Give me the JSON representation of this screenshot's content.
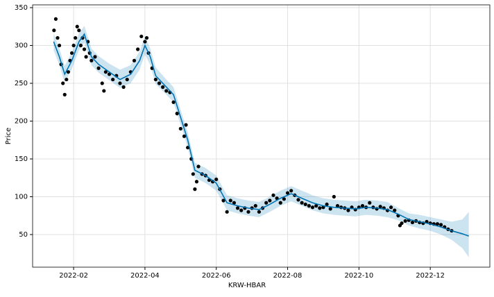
{
  "chart_data": {
    "type": "forecast",
    "xlabel": "KRW-HBAR",
    "ylabel": "Price",
    "xlim": [
      0.85,
      13.67
    ],
    "ylim": [
      6.9,
      353.7
    ],
    "xticks": [
      {
        "value": 2,
        "label": "2022-02"
      },
      {
        "value": 4,
        "label": "2022-04"
      },
      {
        "value": 6,
        "label": "2022-06"
      },
      {
        "value": 8,
        "label": "2022-08"
      },
      {
        "value": 10,
        "label": "2022-10"
      },
      {
        "value": 12,
        "label": "2022-12"
      }
    ],
    "yticks": [
      50,
      100,
      150,
      200,
      250,
      300,
      350
    ],
    "grid": true,
    "line_color": "#0072B2",
    "band_color": "#0072B2",
    "point_color": "#000000",
    "x": [
      1.44,
      1.6,
      1.75,
      1.95,
      2.15,
      2.3,
      2.5,
      2.7,
      3.0,
      3.3,
      3.6,
      3.85,
      4.0,
      4.15,
      4.3,
      4.6,
      4.8,
      5.0,
      5.2,
      5.4,
      5.7,
      6.0,
      6.3,
      6.6,
      6.9,
      7.2,
      7.5,
      7.8,
      8.1,
      8.4,
      8.7,
      9.0,
      9.3,
      9.6,
      9.9,
      10.2,
      10.5,
      10.8,
      11.1,
      11.4,
      11.7,
      12.0,
      12.3,
      12.6,
      12.9,
      13.08
    ],
    "values": [
      305,
      285,
      262,
      280,
      305,
      315,
      285,
      275,
      265,
      255,
      262,
      280,
      300,
      285,
      260,
      245,
      235,
      205,
      175,
      135,
      128,
      118,
      92,
      88,
      85,
      83,
      90,
      98,
      104,
      98,
      92,
      88,
      86,
      85,
      84,
      86,
      85,
      83,
      77,
      70,
      67,
      64,
      60,
      55,
      51,
      48
    ],
    "lower": [
      294,
      274,
      251,
      269,
      294,
      304,
      274,
      264,
      254,
      244,
      250,
      268,
      288,
      274,
      249,
      235,
      225,
      195,
      165,
      125,
      118,
      108,
      82,
      78,
      75,
      73,
      80,
      88,
      94,
      88,
      82,
      78,
      76,
      75,
      74,
      76,
      75,
      73,
      69,
      62,
      58,
      55,
      50,
      43,
      32,
      20
    ],
    "upper": [
      316,
      296,
      273,
      291,
      316,
      326,
      296,
      286,
      276,
      268,
      274,
      292,
      312,
      296,
      271,
      255,
      245,
      215,
      185,
      145,
      138,
      128,
      102,
      98,
      95,
      93,
      100,
      108,
      114,
      108,
      102,
      98,
      96,
      95,
      94,
      96,
      95,
      93,
      85,
      78,
      76,
      73,
      70,
      67,
      70,
      80
    ],
    "points": {
      "x": [
        1.45,
        1.5,
        1.55,
        1.6,
        1.65,
        1.7,
        1.75,
        1.8,
        1.85,
        1.9,
        1.95,
        2.0,
        2.05,
        2.1,
        2.15,
        2.2,
        2.25,
        2.3,
        2.35,
        2.4,
        2.45,
        2.5,
        2.6,
        2.7,
        2.8,
        2.85,
        2.9,
        3.0,
        3.1,
        3.2,
        3.3,
        3.4,
        3.5,
        3.6,
        3.7,
        3.8,
        3.9,
        4.0,
        4.05,
        4.1,
        4.2,
        4.3,
        4.4,
        4.5,
        4.6,
        4.7,
        4.8,
        4.9,
        5.0,
        5.1,
        5.15,
        5.2,
        5.3,
        5.35,
        5.4,
        5.45,
        5.5,
        5.6,
        5.7,
        5.8,
        5.9,
        6.0,
        6.1,
        6.2,
        6.3,
        6.4,
        6.5,
        6.6,
        6.7,
        6.8,
        6.9,
        7.0,
        7.1,
        7.2,
        7.3,
        7.4,
        7.5,
        7.6,
        7.7,
        7.8,
        7.9,
        8.0,
        8.1,
        8.2,
        8.3,
        8.4,
        8.5,
        8.6,
        8.7,
        8.8,
        8.9,
        9.0,
        9.1,
        9.2,
        9.3,
        9.4,
        9.5,
        9.6,
        9.7,
        9.8,
        9.9,
        10.0,
        10.1,
        10.2,
        10.3,
        10.4,
        10.5,
        10.6,
        10.7,
        10.8,
        10.9,
        11.0,
        11.1,
        11.15,
        11.2,
        11.3,
        11.4,
        11.5,
        11.6,
        11.7,
        11.8,
        11.9,
        12.0,
        12.1,
        12.2,
        12.3,
        12.4,
        12.5,
        12.6
      ],
      "y": [
        320,
        335,
        310,
        300,
        275,
        250,
        235,
        255,
        265,
        280,
        290,
        300,
        310,
        325,
        320,
        300,
        310,
        295,
        285,
        305,
        290,
        280,
        285,
        270,
        250,
        240,
        265,
        262,
        255,
        260,
        250,
        245,
        255,
        265,
        280,
        295,
        312,
        305,
        310,
        290,
        270,
        255,
        250,
        245,
        240,
        238,
        225,
        210,
        190,
        180,
        195,
        165,
        150,
        130,
        110,
        120,
        140,
        130,
        128,
        122,
        120,
        123,
        110,
        95,
        80,
        95,
        92,
        85,
        82,
        85,
        80,
        85,
        88,
        80,
        85,
        92,
        95,
        102,
        98,
        92,
        97,
        105,
        108,
        102,
        96,
        92,
        90,
        88,
        86,
        88,
        85,
        86,
        90,
        84,
        100,
        88,
        86,
        85,
        82,
        86,
        83,
        86,
        88,
        86,
        92,
        86,
        84,
        87,
        85,
        82,
        86,
        82,
        75,
        62,
        65,
        68,
        69,
        66,
        68,
        66,
        65,
        67,
        65,
        64,
        64,
        63,
        60,
        57,
        55
      ]
    }
  }
}
